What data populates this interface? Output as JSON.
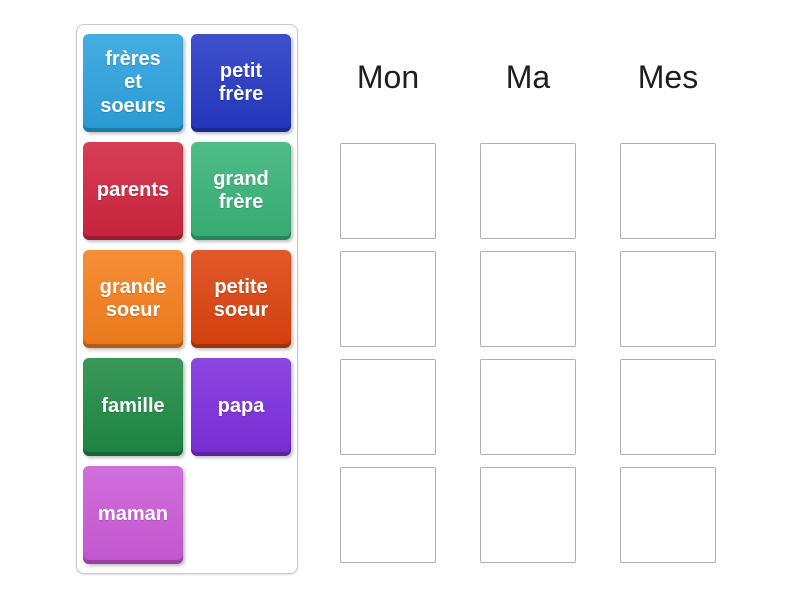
{
  "activity": {
    "kind": "group-sort",
    "background_color": "#ffffff"
  },
  "word_bank": {
    "panel_border_color": "#c9c9c9",
    "text_color": "#ffffff",
    "tiles": [
      {
        "label": "frères\net\nsoeurs",
        "color": "#2BA2DF"
      },
      {
        "label": "petit\nfrère",
        "color": "#2438C4"
      },
      {
        "label": "parents",
        "color": "#D0243E"
      },
      {
        "label": "grand\nfrère",
        "color": "#37B377"
      },
      {
        "label": "grande\nsoeur",
        "color": "#F57E1C"
      },
      {
        "label": "petite\nsoeur",
        "color": "#DD420D"
      },
      {
        "label": "famille",
        "color": "#1E8A43"
      },
      {
        "label": "papa",
        "color": "#7C2EDD"
      },
      {
        "label": "maman",
        "color": "#CB5BD8"
      }
    ]
  },
  "groups": {
    "header_text_color": "#1e1e1e",
    "slot_border_color": "#b0b0b0",
    "columns": [
      {
        "label": "Mon",
        "slot_count": 4
      },
      {
        "label": "Ma",
        "slot_count": 4
      },
      {
        "label": "Mes",
        "slot_count": 4
      }
    ]
  }
}
